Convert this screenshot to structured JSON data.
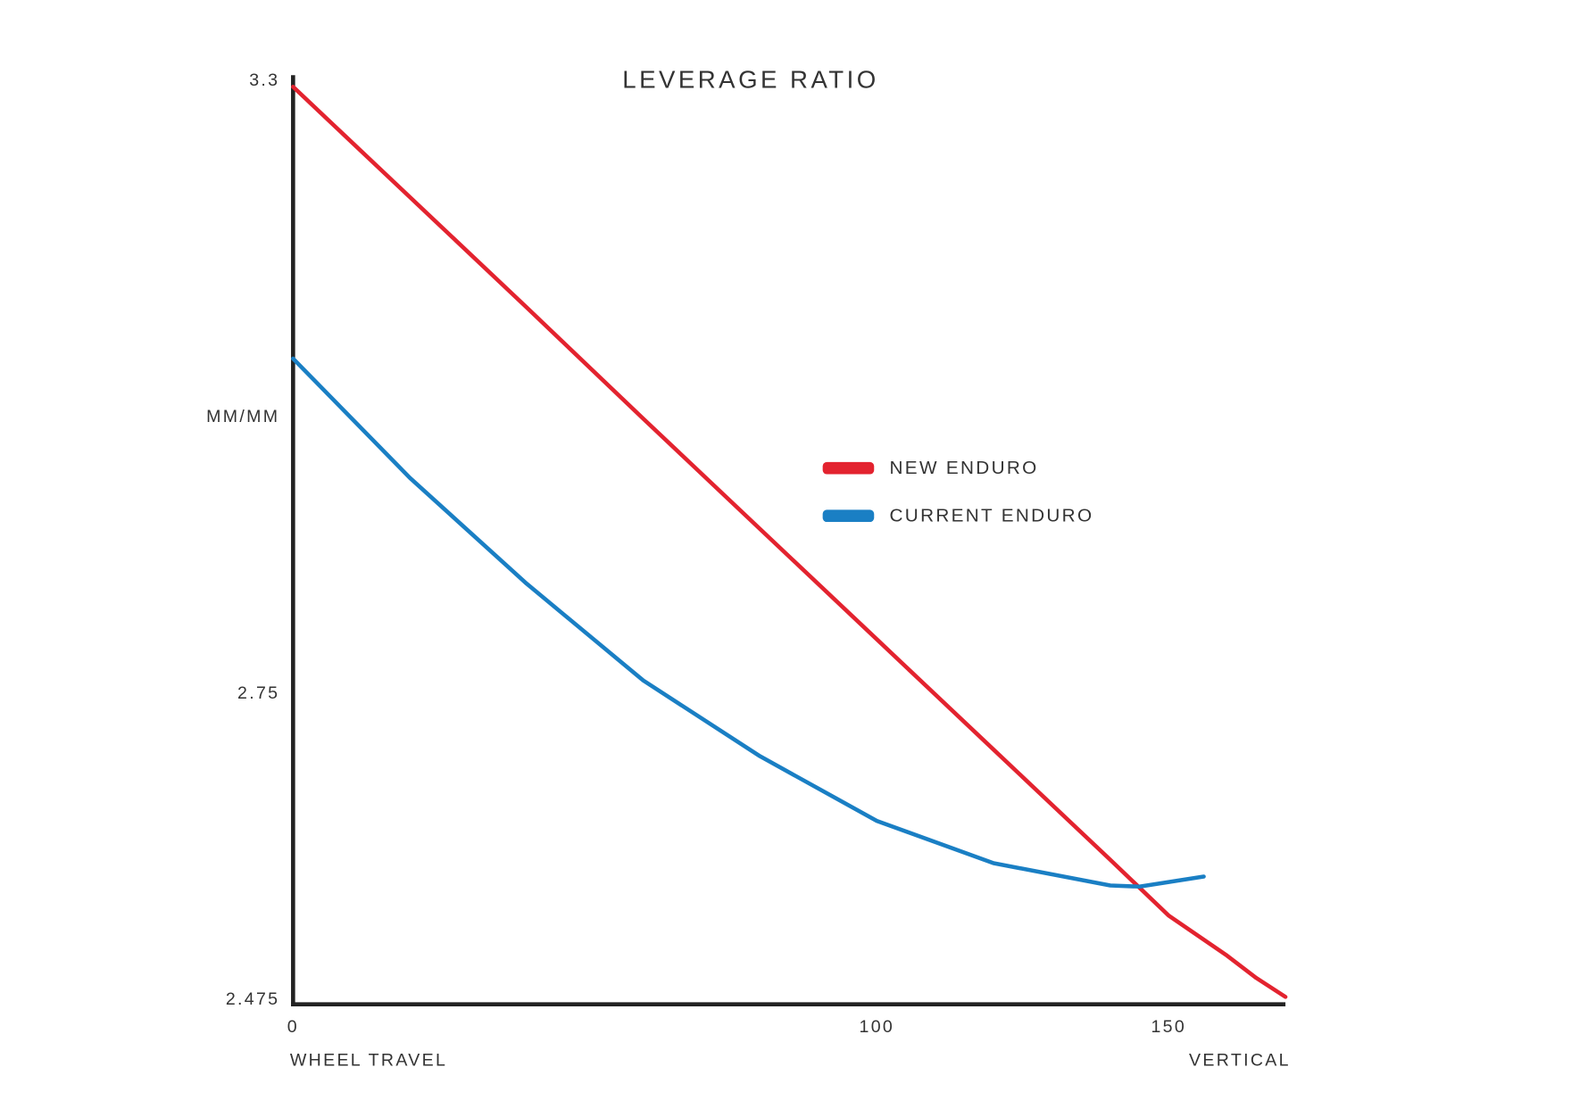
{
  "chart_data": {
    "type": "line",
    "title": "LEVERAGE RATIO",
    "y_label": "MM/MM",
    "x_label": "WHEEL TRAVEL",
    "x_label_right": "VERTICAL",
    "xlim": [
      0,
      170
    ],
    "ylim": [
      2.475,
      3.3
    ],
    "xticks": [
      0,
      100,
      150
    ],
    "yticks": [
      2.475,
      2.75,
      3.3
    ],
    "grid": false,
    "legend": "center",
    "series": [
      {
        "name": "NEW ENDURO",
        "color": "#e3232f",
        "x": [
          0,
          20,
          40,
          60,
          80,
          100,
          120,
          140,
          150,
          160,
          165,
          170
        ],
        "values": [
          3.295,
          3.196,
          3.097,
          2.997,
          2.898,
          2.799,
          2.7,
          2.601,
          2.551,
          2.515,
          2.495,
          2.478
        ]
      },
      {
        "name": "CURRENT ENDURO",
        "color": "#1a7fc4",
        "x": [
          0,
          20,
          40,
          60,
          80,
          100,
          120,
          140,
          145,
          156
        ],
        "values": [
          3.051,
          2.944,
          2.849,
          2.762,
          2.694,
          2.636,
          2.598,
          2.578,
          2.577,
          2.586
        ]
      }
    ]
  }
}
